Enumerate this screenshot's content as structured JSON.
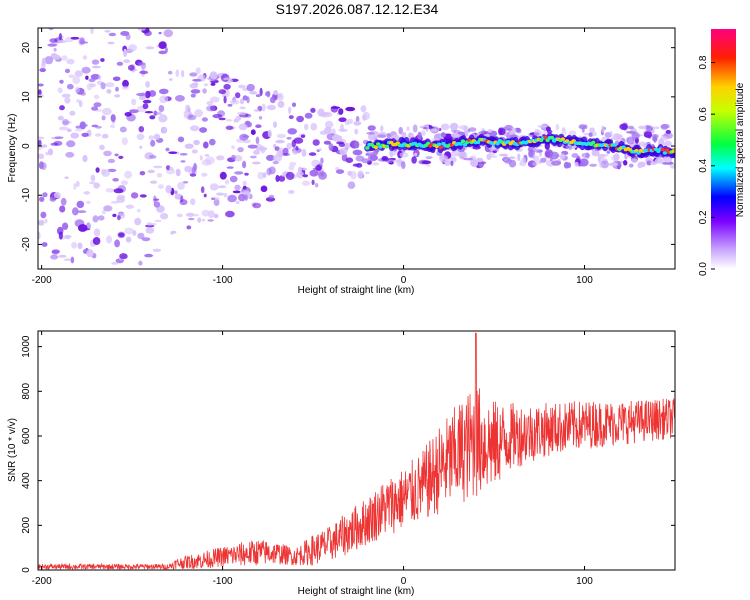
{
  "title": "S197.2026.087.12.12.E34",
  "colors": {
    "snr_line": "#ee3333",
    "frame": "#000000",
    "ridge": "#ff2020",
    "cloud": "#7a20e8"
  },
  "chart_data": [
    {
      "type": "heatmap",
      "name": "spectrogram",
      "title": "S197.2026.087.12.12.E34",
      "xlabel": "Height of straight line (km)",
      "ylabel": "Frequency (Hz)",
      "xlim": [
        -202,
        150
      ],
      "ylim": [
        -25,
        24
      ],
      "xticks": [
        -200,
        -100,
        0,
        100
      ],
      "yticks": [
        -20,
        -10,
        0,
        10,
        20
      ],
      "ridge": {
        "x": [
          -20,
          0,
          20,
          40,
          60,
          80,
          100,
          115,
          130,
          150
        ],
        "y": [
          0,
          0.5,
          0,
          1,
          0.5,
          1.5,
          0.5,
          0,
          -1,
          -1
        ]
      },
      "colorbar": {
        "label": "Normalized spectral amplitude",
        "ticks": [
          0.0,
          0.2,
          0.4,
          0.6,
          0.8
        ],
        "tick_labels": [
          "0.0",
          "0.2",
          "0.4",
          "0.6",
          "0.8"
        ],
        "range": [
          0,
          0.93
        ]
      }
    },
    {
      "type": "line",
      "name": "snr",
      "xlabel": "Height of straight line (km)",
      "ylabel": "SNR (10 * v/v)",
      "xlim": [
        -202,
        150
      ],
      "ylim": [
        0,
        1070
      ],
      "xticks": [
        -200,
        -100,
        0,
        100
      ],
      "yticks": [
        0,
        200,
        400,
        600,
        800,
        1000
      ],
      "envelope": {
        "x": [
          -202,
          -130,
          -125,
          -110,
          -100,
          -90,
          -80,
          -70,
          -60,
          -50,
          -40,
          -30,
          -20,
          -10,
          0,
          10,
          20,
          30,
          40,
          50,
          60,
          80,
          100,
          120,
          150
        ],
        "mean": [
          15,
          15,
          30,
          45,
          60,
          70,
          80,
          75,
          60,
          90,
          120,
          170,
          220,
          280,
          320,
          370,
          450,
          520,
          580,
          560,
          600,
          630,
          650,
          660,
          680
        ],
        "amp": [
          12,
          12,
          25,
          40,
          45,
          55,
          60,
          50,
          40,
          70,
          80,
          100,
          110,
          130,
          140,
          160,
          200,
          230,
          260,
          200,
          150,
          120,
          110,
          100,
          90
        ]
      },
      "peak": {
        "x": 40,
        "y": 1060
      }
    }
  ]
}
